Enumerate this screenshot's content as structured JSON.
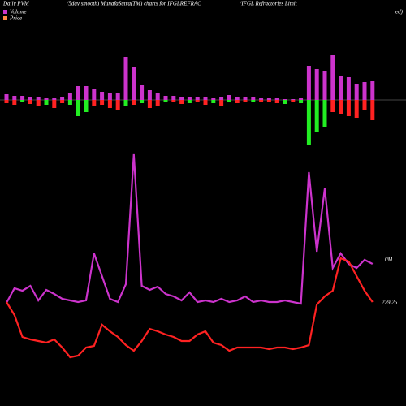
{
  "chart_data": {
    "type": "pvm",
    "title": "Daily PVM",
    "subtitle": "(5day smooth) MunafaSutra(TM) charts for IFGLREFRAC",
    "company": "(IFGL Refractories Limit",
    "company_tail": "ed)",
    "volume_label": "0M",
    "price_label": "279.25",
    "bars_ylim": [
      -60,
      60
    ],
    "lines_ylim": [
      0,
      500
    ],
    "upper_bar_color": "#cc33cc",
    "upper_bars": [
      7,
      5,
      5,
      3,
      3,
      2,
      2,
      3,
      8,
      17,
      17,
      14,
      10,
      8,
      8,
      53,
      40,
      18,
      12,
      8,
      5,
      5,
      4,
      3,
      3,
      3,
      2,
      3,
      6,
      4,
      3,
      3,
      2,
      2,
      2,
      1,
      1,
      2,
      42,
      38,
      36,
      55,
      30,
      28,
      20,
      22,
      23
    ],
    "lower_bars": [
      4,
      6,
      3,
      5,
      8,
      6,
      10,
      4,
      6,
      20,
      15,
      8,
      6,
      10,
      12,
      8,
      6,
      4,
      10,
      8,
      3,
      3,
      5,
      4,
      3,
      6,
      4,
      8,
      3,
      4,
      2,
      3,
      2,
      3,
      4,
      5,
      2,
      4,
      55,
      40,
      33,
      15,
      18,
      20,
      22,
      12,
      25
    ],
    "lower_bar_colors": [
      "#ff2222",
      "#ff2222",
      "#22ee22",
      "#ff2222",
      "#ff2222",
      "#22ee22",
      "#ff2222",
      "#ff2222",
      "#22ee22",
      "#22ee22",
      "#22ee22",
      "#ff2222",
      "#ff2222",
      "#ff2222",
      "#ff2222",
      "#22ee22",
      "#ff2222",
      "#22ee22",
      "#ff2222",
      "#ff2222",
      "#22ee22",
      "#ff2222",
      "#ff2222",
      "#22ee22",
      "#ff2222",
      "#ff2222",
      "#22ee22",
      "#ff2222",
      "#22ee22",
      "#ff2222",
      "#ff2222",
      "#22ee22",
      "#ff2222",
      "#ff2222",
      "#ff2222",
      "#22ee22",
      "#ff2222",
      "#22ee22",
      "#22ee22",
      "#22ee22",
      "#22ee22",
      "#ff2222",
      "#ff2222",
      "#ff2222",
      "#ff2222",
      "#ff2222",
      "#ff2222"
    ],
    "series": [
      {
        "name": "Volume",
        "color": "#cc33cc",
        "values": [
          127,
          145,
          142,
          148,
          130,
          143,
          138,
          132,
          130,
          128,
          130,
          188,
          160,
          132,
          128,
          150,
          310,
          148,
          143,
          147,
          138,
          135,
          130,
          140,
          128,
          130,
          128,
          132,
          128,
          130,
          135,
          128,
          130,
          128,
          128,
          130,
          128,
          126,
          288,
          190,
          268,
          170,
          188,
          175,
          170,
          180,
          175
        ]
      },
      {
        "name": "Price",
        "color": "#ff2222",
        "values": [
          128,
          112,
          85,
          82,
          80,
          78,
          82,
          72,
          60,
          62,
          72,
          74,
          100,
          92,
          85,
          75,
          68,
          80,
          95,
          92,
          88,
          85,
          80,
          80,
          88,
          92,
          78,
          75,
          68,
          72,
          72,
          72,
          72,
          70,
          72,
          72,
          70,
          72,
          75,
          125,
          135,
          142,
          182,
          178,
          160,
          142,
          128
        ]
      }
    ]
  }
}
